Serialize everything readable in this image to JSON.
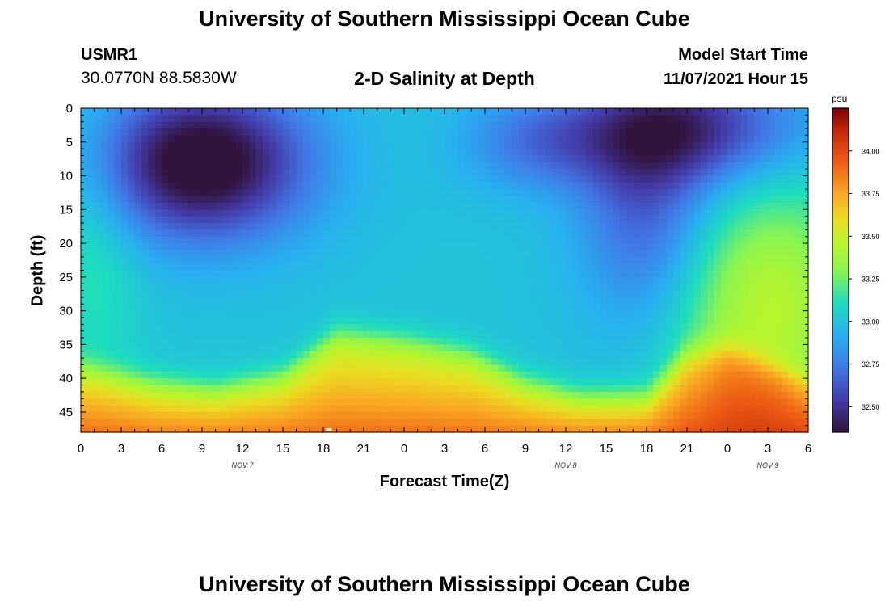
{
  "header": {
    "title": "University of Southern Mississippi Ocean Cube",
    "station": "USMR1",
    "coordinates": "30.0770N  88.5830W",
    "chart_title": "2-D Salinity at Depth",
    "model_start_label": "Model Start Time",
    "model_start_value": "11/07/2021 Hour 15"
  },
  "footer": {
    "title": "University of Southern Mississippi Ocean Cube"
  },
  "chart_data": {
    "type": "heatmap",
    "title": "2-D Salinity at Depth",
    "xlabel": "Forecast Time(Z)",
    "ylabel": "Depth (ft)",
    "x_hours_range": [
      0,
      54
    ],
    "x_tick_labels": [
      "0",
      "3",
      "6",
      "9",
      "12",
      "15",
      "18",
      "21",
      "0",
      "3",
      "6",
      "9",
      "12",
      "15",
      "18",
      "21",
      "0",
      "3",
      "6"
    ],
    "date_labels": [
      {
        "text": "NOV 7",
        "hour": 12
      },
      {
        "text": "NOV 8",
        "hour": 36
      },
      {
        "text": "NOV 9",
        "hour": 51
      }
    ],
    "y_range": [
      0,
      48
    ],
    "y_ticks": [
      0,
      5,
      10,
      15,
      20,
      25,
      30,
      35,
      40,
      45
    ],
    "colorbar": {
      "unit": "psu",
      "range": [
        32.35,
        34.25
      ],
      "ticks": [
        "32.50",
        "32.75",
        "33.00",
        "33.25",
        "33.50",
        "33.75",
        "34.00"
      ],
      "tick_values": [
        32.5,
        32.75,
        33.0,
        33.25,
        33.5,
        33.75,
        34.0
      ]
    },
    "field": {
      "background": 33.0,
      "gaussians": [
        {
          "amp": -0.75,
          "x": 9,
          "y": 8,
          "sx": 5.5,
          "sy": 8
        },
        {
          "amp": -0.35,
          "x": 42,
          "y": 15,
          "sx": 3.5,
          "sy": 12
        },
        {
          "amp": -0.5,
          "x": 45,
          "y": 3,
          "sx": 6,
          "sy": 6
        },
        {
          "amp": -0.25,
          "x": 34,
          "y": 5,
          "sx": 4,
          "sy": 5
        },
        {
          "amp": 0.45,
          "x": 51,
          "y": 30,
          "sx": 5,
          "sy": 13
        },
        {
          "amp": 0.15,
          "x": 1,
          "y": 20,
          "sx": 2.5,
          "sy": 15
        }
      ],
      "bottom_layer": [
        {
          "x": 0,
          "top": 38
        },
        {
          "x": 5,
          "top": 40
        },
        {
          "x": 10,
          "top": 41
        },
        {
          "x": 15,
          "top": 39
        },
        {
          "x": 19,
          "top": 33
        },
        {
          "x": 24,
          "top": 34
        },
        {
          "x": 29,
          "top": 36
        },
        {
          "x": 33,
          "top": 40
        },
        {
          "x": 37,
          "top": 42
        },
        {
          "x": 42,
          "top": 42
        },
        {
          "x": 45,
          "top": 36
        },
        {
          "x": 48,
          "top": 35
        },
        {
          "x": 54,
          "top": 40
        }
      ],
      "bottom_strength": 0.95
    }
  }
}
